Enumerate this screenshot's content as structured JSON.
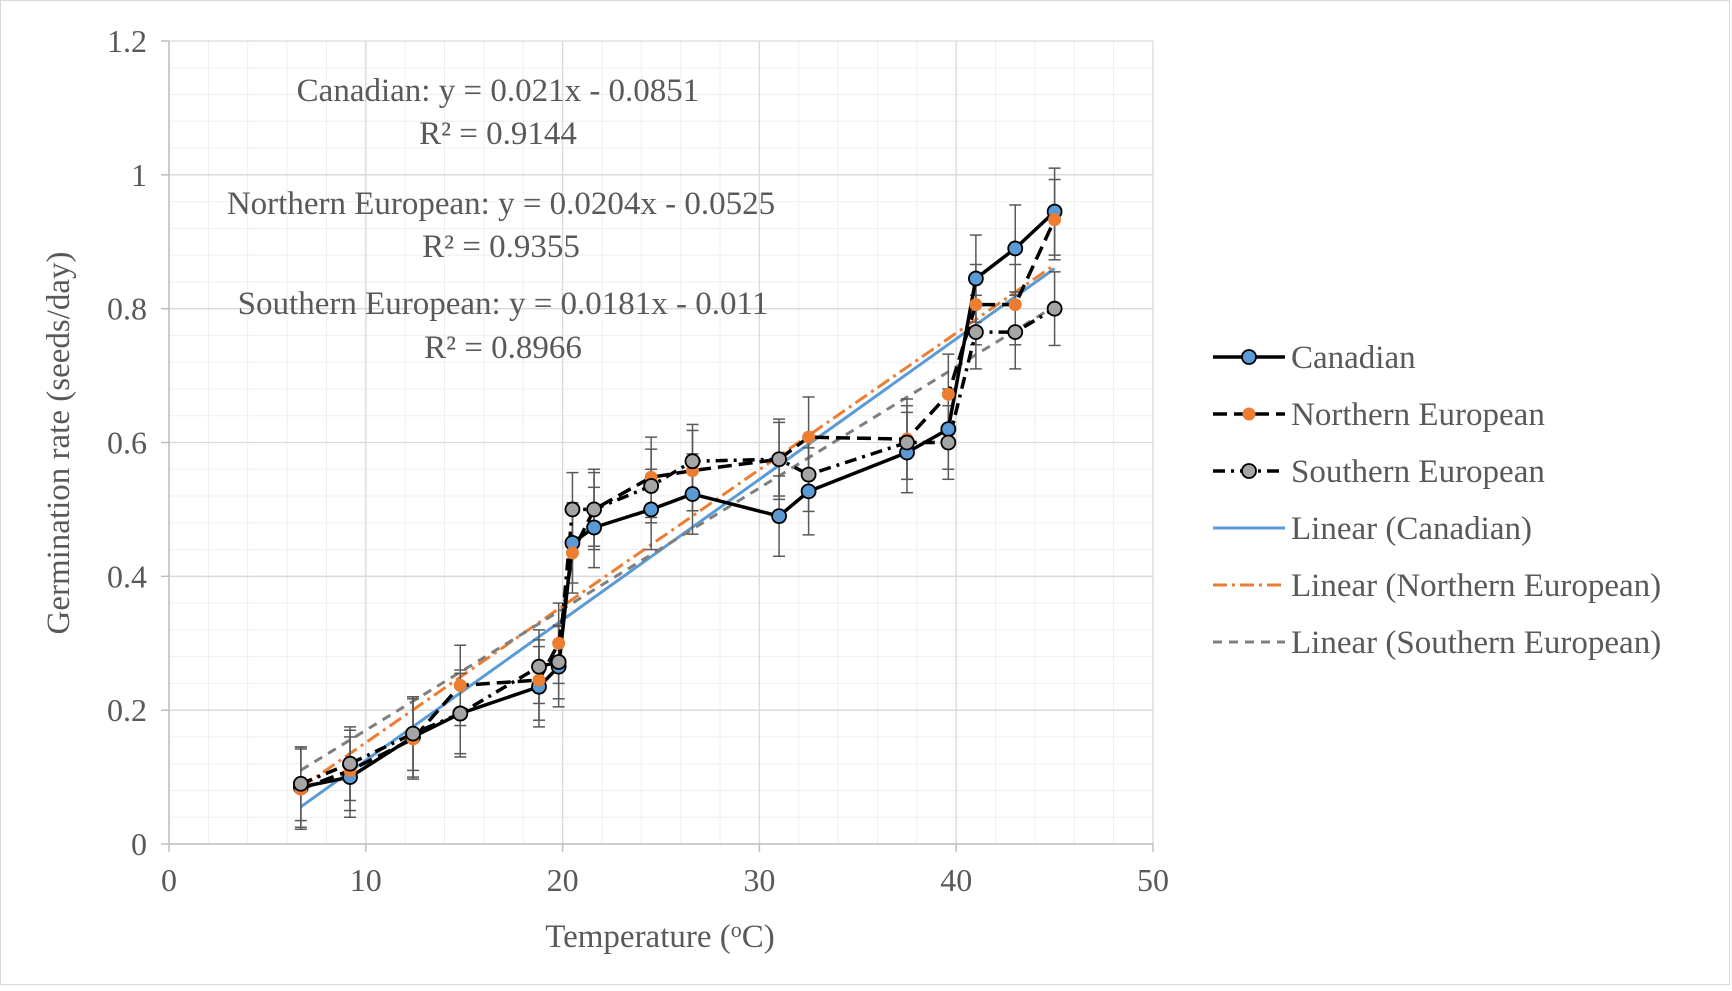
{
  "chart_data": {
    "type": "scatter",
    "xlabel": "Temperature (°C)",
    "ylabel": "Germination rate (seeds/day)",
    "xlim": [
      0,
      50
    ],
    "ylim": [
      0,
      1.2
    ],
    "x_ticks": [
      "0",
      "10",
      "20",
      "30",
      "40",
      "50"
    ],
    "y_ticks": [
      "0",
      "0.2",
      "0.4",
      "0.6",
      "0.8",
      "1",
      "1.2"
    ],
    "grid": true,
    "legend_position": "right",
    "series": [
      {
        "name": "Canadian",
        "color": "#5b9bd5",
        "marker_edge": "#000000",
        "x": [
          6.7,
          9.2,
          12.4,
          14.8,
          18.8,
          19.8,
          20.5,
          21.6,
          24.5,
          26.6,
          31.0,
          32.5,
          37.5,
          39.6,
          41.0,
          43.0,
          45.0
        ],
        "y": [
          0.085,
          0.1,
          0.16,
          0.195,
          0.235,
          0.265,
          0.45,
          0.473,
          0.5,
          0.523,
          0.49,
          0.527,
          0.585,
          0.62,
          0.845,
          0.89,
          0.945
        ],
        "err": [
          0.06,
          0.06,
          0.06,
          0.06,
          0.06,
          0.06,
          0.06,
          0.06,
          0.06,
          0.06,
          0.06,
          0.065,
          0.06,
          0.06,
          0.065,
          0.065,
          0.065
        ]
      },
      {
        "name": "Northern European",
        "color": "#ed7d31",
        "marker_edge": "#ed7d31",
        "x": [
          6.7,
          9.2,
          12.4,
          14.8,
          18.8,
          19.8,
          20.5,
          21.6,
          24.5,
          26.6,
          31.0,
          32.5,
          37.5,
          39.6,
          41.0,
          43.0,
          45.0
        ],
        "y": [
          0.082,
          0.11,
          0.157,
          0.237,
          0.245,
          0.3,
          0.435,
          0.5,
          0.548,
          0.558,
          0.575,
          0.608,
          0.605,
          0.672,
          0.806,
          0.806,
          0.933
        ],
        "err": [
          0.06,
          0.06,
          0.06,
          0.06,
          0.06,
          0.06,
          0.06,
          0.06,
          0.06,
          0.06,
          0.06,
          0.06,
          0.06,
          0.06,
          0.06,
          0.06,
          0.06
        ]
      },
      {
        "name": "Southern European",
        "color": "#a5a5a5",
        "marker_edge": "#000000",
        "x": [
          6.7,
          9.2,
          12.4,
          14.8,
          18.8,
          19.8,
          20.5,
          21.6,
          24.5,
          26.6,
          31.0,
          32.5,
          37.5,
          39.6,
          41.0,
          43.0,
          45.0
        ],
        "y": [
          0.09,
          0.12,
          0.165,
          0.195,
          0.265,
          0.272,
          0.5,
          0.5,
          0.535,
          0.572,
          0.575,
          0.552,
          0.6,
          0.6,
          0.765,
          0.765,
          0.8
        ],
        "err": [
          0.055,
          0.055,
          0.055,
          0.065,
          0.055,
          0.055,
          0.055,
          0.055,
          0.055,
          0.055,
          0.055,
          0.055,
          0.055,
          0.055,
          0.055,
          0.055,
          0.055
        ]
      }
    ],
    "trendlines": [
      {
        "name": "Linear (Canadian)",
        "slope": 0.021,
        "intercept": -0.0851,
        "x_range": [
          6.7,
          45.0
        ],
        "color": "#5b9bd5",
        "style": "solid"
      },
      {
        "name": "Linear (Northern European)",
        "slope": 0.0204,
        "intercept": -0.0525,
        "x_range": [
          6.7,
          45.0
        ],
        "color": "#ed7d31",
        "style": "dashdot"
      },
      {
        "name": "Linear (Southern European)",
        "slope": 0.0181,
        "intercept": -0.011,
        "x_range": [
          6.7,
          45.0
        ],
        "color": "#7f7f7f",
        "style": "dash"
      }
    ],
    "annotations": [
      {
        "eq": "Canadian: y = 0.021x - 0.0851",
        "r2": "R² = 0.9144"
      },
      {
        "eq": "Northern European: y = 0.0204x - 0.0525",
        "r2": "R² = 0.9355"
      },
      {
        "eq": "Southern European: y = 0.0181x - 0.011",
        "r2": "R² = 0.8966"
      }
    ]
  }
}
